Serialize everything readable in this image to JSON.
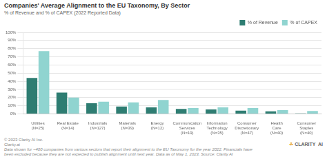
{
  "chart_data": {
    "type": "bar",
    "title": "Companies' Average Alignment to the EU Taxonomy, By Sector",
    "subtitle": "% of Revenue and % of CAPEX (2022 Reported Data)",
    "categories": [
      "Utilities\n(N=25)",
      "Real Estate\n(N=14)",
      "Industrials\n(N=127)",
      "Materials\n(N=39)",
      "Energy\n(N=12)",
      "Communication\nServices\n(N=19)",
      "Information\nTechnology\n(N=35)",
      "Consumer\nDiscretionary\n(N=47)",
      "Health\nCare\n(N=40)",
      "Consumer\nStaples\n(N=40)"
    ],
    "series": [
      {
        "name": "% of Revenue",
        "color": "#2e7d72",
        "values": [
          44,
          26,
          13,
          9,
          8,
          6,
          5.5,
          4,
          3,
          0.5
        ]
      },
      {
        "name": "% of CAPEX",
        "color": "#90d4d0",
        "values": [
          77,
          20,
          15,
          14,
          17,
          7,
          8,
          7,
          4.5,
          3.5
        ]
      }
    ],
    "ylim": [
      0,
      100
    ],
    "yticks": [
      {
        "value": 0,
        "label": "0%"
      },
      {
        "value": 10,
        "label": "10%"
      },
      {
        "value": 20,
        "label": "20%"
      },
      {
        "value": 30,
        "label": "30%"
      },
      {
        "value": 40,
        "label": "40%"
      },
      {
        "value": 50,
        "label": "50%"
      },
      {
        "value": 60,
        "label": "60%"
      },
      {
        "value": 70,
        "label": "70%"
      },
      {
        "value": 80,
        "label": "80%"
      },
      {
        "value": 90,
        "label": "90%"
      },
      {
        "value": 100,
        "label": "100%"
      }
    ],
    "grid": true,
    "legend": "upper right",
    "annotations": [
      "© 2023 Clarity AI Inc.\nClarity.ai",
      "Data shown for ~400 companies from various sectors that report their alignment to the EU Taxonomy for the year 2022. Financials have\nbeen excluded because they are not expected to publish alignment until next year. Data as of May 1, 2023. Source: Clarity AI",
      "☘",
      "CLARITY  AI"
    ]
  }
}
